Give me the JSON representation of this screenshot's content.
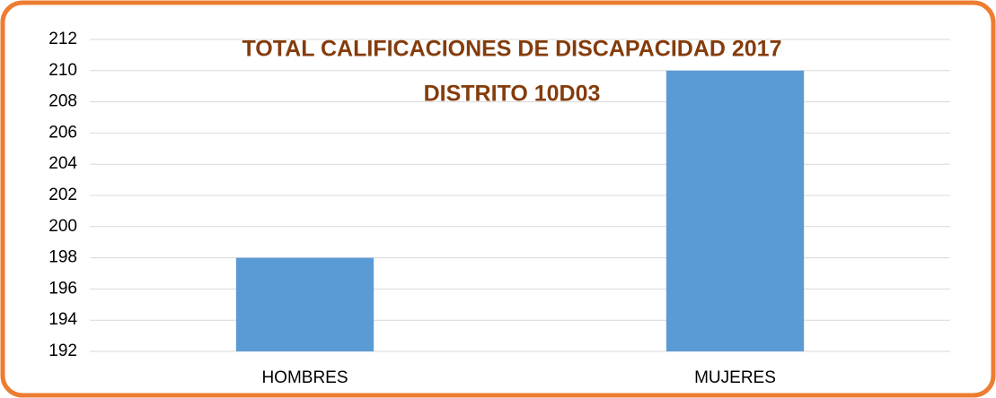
{
  "chart_data": {
    "type": "bar",
    "title": "TOTAL CALIFICACIONES DE DISCAPACIDAD 2017",
    "subtitle": "DISTRITO 10D03",
    "categories": [
      "HOMBRES",
      "MUJERES"
    ],
    "values": [
      198,
      210
    ],
    "color": "#5b9bd5",
    "ylim": [
      192,
      212
    ],
    "yticks": [
      192,
      194,
      196,
      198,
      200,
      202,
      204,
      206,
      208,
      210,
      212
    ],
    "grid": true
  }
}
